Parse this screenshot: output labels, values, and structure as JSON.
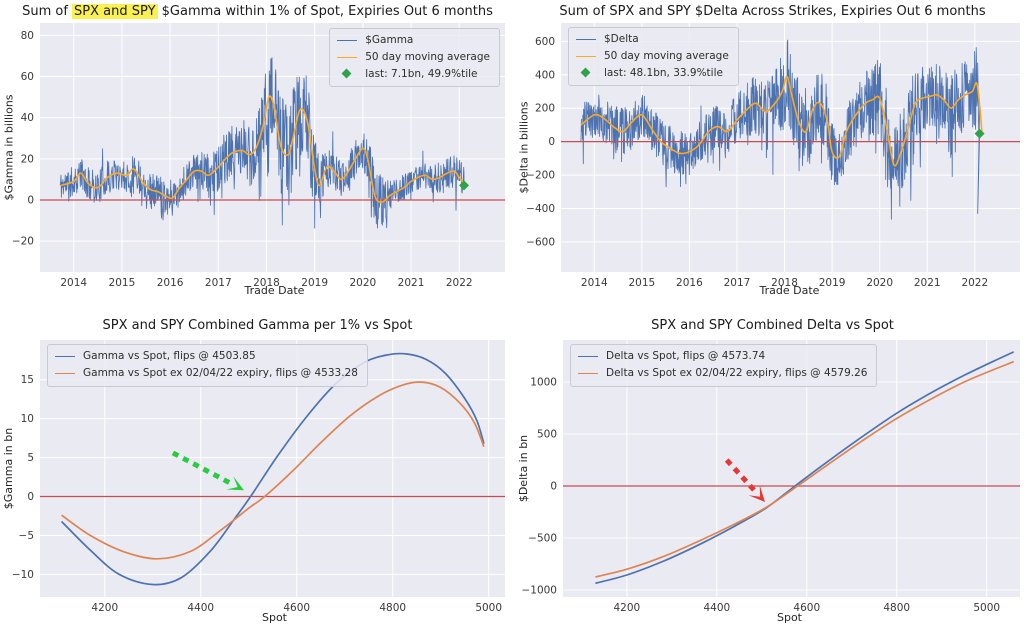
{
  "colors": {
    "blue": "#4c72b0",
    "orange_ma": "#ffa71f",
    "orange_curve": "#dd8452",
    "red_line": "#c44e52",
    "green_marker": "#31a24c",
    "green_arrow": "#28cd3c",
    "red_arrow": "#e63732",
    "axes_bg": "#eaeaf2",
    "grid": "#ffffff",
    "highlight": "#f9f054",
    "text": "#262626"
  },
  "chart_data": [
    {
      "id": "spx-spy-gamma-timeseries",
      "type": "line",
      "title_parts": [
        {
          "t": "Sum of "
        },
        {
          "t": "SPX and SPY",
          "hl": true
        },
        {
          "t": " $Gamma within 1% of Spot, Expiries Out 6 months"
        }
      ],
      "xlabel": "Trade Date",
      "ylabel": "$Gamma in billions",
      "xlim": [
        2013.3,
        2022.95
      ],
      "ylim": [
        -35,
        86
      ],
      "xticks": [
        2014,
        2015,
        2016,
        2017,
        2018,
        2019,
        2020,
        2021,
        2022
      ],
      "yticks": [
        -20,
        0,
        20,
        40,
        60,
        80
      ],
      "grid": true,
      "zero_line": true,
      "legend": {
        "position": "top-right",
        "items": [
          {
            "label": "$Gamma",
            "swatch": "line",
            "color": "#4c72b0"
          },
          {
            "label": "50 day moving average",
            "swatch": "line",
            "color": "#ffa71f"
          },
          {
            "label": "last: 7.1bn, 49.9%tile",
            "swatch": "diamond",
            "color": "#31a24c"
          }
        ]
      },
      "noisy_series": {
        "name": "$Gamma",
        "color": "#4c72b0",
        "x_start": 2013.72,
        "n_points": 1050,
        "seed": 11,
        "clamp": [
          -26,
          78
        ],
        "ma": {
          "name": "50 day moving average",
          "color": "#ffa71f",
          "x": [
            2013.72,
            2014.0,
            2014.15,
            2014.3,
            2014.5,
            2014.7,
            2014.9,
            2015.1,
            2015.25,
            2015.45,
            2015.6,
            2015.75,
            2015.9,
            2016.05,
            2016.2,
            2016.35,
            2016.5,
            2016.65,
            2016.8,
            2017.0,
            2017.15,
            2017.3,
            2017.5,
            2017.65,
            2017.8,
            2017.95,
            2018.05,
            2018.15,
            2018.3,
            2018.45,
            2018.55,
            2018.7,
            2018.85,
            2019.0,
            2019.1,
            2019.25,
            2019.4,
            2019.55,
            2019.7,
            2019.85,
            2020.0,
            2020.1,
            2020.25,
            2020.4,
            2020.55,
            2020.7,
            2020.85,
            2021.0,
            2021.15,
            2021.3,
            2021.45,
            2021.6,
            2021.75,
            2021.9,
            2022.0,
            2022.1
          ],
          "y": [
            7,
            9,
            13,
            8,
            6,
            11,
            13,
            12,
            15,
            8,
            5,
            4,
            2,
            1,
            6,
            10,
            14,
            14,
            12,
            16,
            20,
            23,
            24,
            22,
            26,
            38,
            50,
            46,
            26,
            22,
            30,
            44,
            38,
            15,
            7,
            16,
            14,
            10,
            14,
            20,
            25,
            20,
            2,
            -1,
            2,
            4,
            6,
            9,
            11,
            12,
            10,
            11,
            13,
            14,
            11,
            8
          ]
        },
        "noise_amp": {
          "x": [
            2013.72,
            2014.5,
            2015.5,
            2016.0,
            2016.5,
            2017.0,
            2017.7,
            2018.0,
            2018.5,
            2018.9,
            2019.2,
            2019.6,
            2020.0,
            2020.3,
            2020.6,
            2021.0,
            2021.5,
            2022.0,
            2022.1
          ],
          "y": [
            7,
            8,
            8,
            9,
            8,
            12,
            16,
            22,
            26,
            22,
            10,
            8,
            10,
            15,
            7,
            6,
            7,
            9,
            8
          ]
        },
        "last": {
          "x": 2022.1,
          "y": 7.1,
          "label": "last: 7.1bn, 49.9%tile",
          "color": "#31a24c"
        }
      }
    },
    {
      "id": "spx-spy-delta-timeseries",
      "type": "line",
      "title_parts": [
        {
          "t": "Sum of SPX and SPY $Delta Across Strikes, Expiries Out 6 months"
        }
      ],
      "xlabel": "Trade Date",
      "ylabel": "$Delta in billions",
      "xlim": [
        2013.3,
        2022.95
      ],
      "ylim": [
        -780,
        710
      ],
      "xticks": [
        2014,
        2015,
        2016,
        2017,
        2018,
        2019,
        2020,
        2021,
        2022
      ],
      "yticks": [
        -600,
        -400,
        -200,
        0,
        200,
        400,
        600
      ],
      "grid": true,
      "zero_line": true,
      "legend": {
        "position": "top-left",
        "items": [
          {
            "label": "$Delta",
            "swatch": "line",
            "color": "#4c72b0"
          },
          {
            "label": "50 day moving average",
            "swatch": "line",
            "color": "#ffa71f"
          },
          {
            "label": "last: 48.1bn, 33.9%tile",
            "swatch": "diamond",
            "color": "#31a24c"
          }
        ]
      },
      "noisy_series": {
        "name": "$Delta",
        "color": "#4c72b0",
        "x_start": 2013.72,
        "n_points": 1050,
        "seed": 23,
        "clamp": [
          -690,
          660
        ],
        "end_dip": [
          2022.06,
          -430
        ],
        "ma": {
          "name": "50 day moving average",
          "color": "#ffa71f",
          "x": [
            2013.72,
            2014.0,
            2014.2,
            2014.4,
            2014.6,
            2014.8,
            2015.0,
            2015.2,
            2015.4,
            2015.6,
            2015.8,
            2016.0,
            2016.2,
            2016.4,
            2016.6,
            2016.8,
            2017.0,
            2017.2,
            2017.4,
            2017.6,
            2017.8,
            2017.95,
            2018.05,
            2018.15,
            2018.3,
            2018.45,
            2018.6,
            2018.75,
            2018.9,
            2019.0,
            2019.15,
            2019.3,
            2019.5,
            2019.7,
            2019.85,
            2020.0,
            2020.15,
            2020.3,
            2020.45,
            2020.6,
            2020.75,
            2020.9,
            2021.05,
            2021.2,
            2021.35,
            2021.5,
            2021.65,
            2021.8,
            2021.95,
            2022.05,
            2022.15
          ],
          "y": [
            100,
            160,
            140,
            90,
            60,
            120,
            160,
            80,
            0,
            -40,
            -70,
            -60,
            -20,
            60,
            90,
            60,
            130,
            190,
            230,
            180,
            230,
            300,
            390,
            280,
            120,
            60,
            200,
            230,
            120,
            -60,
            -90,
            60,
            160,
            230,
            250,
            260,
            80,
            -140,
            -60,
            80,
            230,
            260,
            270,
            280,
            250,
            200,
            250,
            280,
            300,
            340,
            60
          ]
        },
        "noise_amp": {
          "x": [
            2013.72,
            2014.5,
            2015.0,
            2015.8,
            2016.3,
            2017.0,
            2017.8,
            2018.1,
            2018.5,
            2019.0,
            2019.5,
            2020.0,
            2020.4,
            2021.0,
            2021.5,
            2022.0,
            2022.15
          ],
          "y": [
            120,
            150,
            140,
            130,
            120,
            160,
            200,
            260,
            260,
            200,
            160,
            240,
            260,
            180,
            200,
            230,
            260
          ]
        },
        "last": {
          "x": 2022.1,
          "y": 48.1,
          "label": "last: 48.1bn, 33.9%tile",
          "color": "#31a24c"
        }
      }
    },
    {
      "id": "gamma-vs-spot",
      "type": "curve",
      "title_parts": [
        {
          "t": "SPX and SPY Combined Gamma per 1% vs Spot"
        }
      ],
      "xlabel": "Spot",
      "ylabel": "$Gamma in bn",
      "xlim": [
        4065,
        5034
      ],
      "ylim": [
        -12.9,
        20.1
      ],
      "xticks": [
        4200,
        4400,
        4600,
        4800,
        5000
      ],
      "yticks": [
        -10,
        -5,
        0,
        5,
        10,
        15
      ],
      "grid": true,
      "zero_line": true,
      "legend": {
        "position": "top-left",
        "items": [
          {
            "label": "Gamma vs Spot, flips @ 4503.85",
            "swatch": "line",
            "color": "#4c72b0"
          },
          {
            "label": "Gamma vs Spot ex 02/04/22 expiry, flips @ 4533.28",
            "swatch": "line",
            "color": "#dd8452"
          }
        ]
      },
      "curves": [
        {
          "name": "Gamma vs Spot, flips @ 4503.85",
          "color": "#4c72b0",
          "flip": 4503.85,
          "points": [
            [
              4110,
              -3.2
            ],
            [
              4170,
              -6.9
            ],
            [
              4230,
              -10.0
            ],
            [
              4300,
              -11.3
            ],
            [
              4360,
              -10.4
            ],
            [
              4420,
              -7.0
            ],
            [
              4470,
              -2.9
            ],
            [
              4503.85,
              0
            ],
            [
              4560,
              5.2
            ],
            [
              4620,
              10.2
            ],
            [
              4680,
              14.4
            ],
            [
              4740,
              17.2
            ],
            [
              4790,
              18.2
            ],
            [
              4830,
              18.3
            ],
            [
              4870,
              17.6
            ],
            [
              4910,
              15.8
            ],
            [
              4950,
              12.6
            ],
            [
              4975,
              9.8
            ],
            [
              4990,
              6.8
            ]
          ]
        },
        {
          "name": "Gamma vs Spot ex 02/04/22 expiry, flips @ 4533.28",
          "color": "#dd8452",
          "flip": 4533.28,
          "points": [
            [
              4110,
              -2.4
            ],
            [
              4170,
              -5.0
            ],
            [
              4240,
              -7.1
            ],
            [
              4310,
              -8.0
            ],
            [
              4380,
              -7.0
            ],
            [
              4440,
              -4.4
            ],
            [
              4500,
              -1.5
            ],
            [
              4533.28,
              0
            ],
            [
              4590,
              3.2
            ],
            [
              4650,
              6.9
            ],
            [
              4710,
              10.3
            ],
            [
              4770,
              12.9
            ],
            [
              4820,
              14.3
            ],
            [
              4860,
              14.7
            ],
            [
              4900,
              14.0
            ],
            [
              4940,
              12.0
            ],
            [
              4970,
              9.5
            ],
            [
              4990,
              6.4
            ]
          ]
        }
      ],
      "arrow": {
        "color": "#28cd3c",
        "from": [
          4342,
          5.6
        ],
        "to": [
          4490,
          0.8
        ]
      }
    },
    {
      "id": "delta-vs-spot",
      "type": "curve",
      "title_parts": [
        {
          "t": "SPX and SPY Combined Delta vs Spot"
        }
      ],
      "xlabel": "Spot",
      "ylabel": "$Delta in bn",
      "xlim": [
        4058,
        5074
      ],
      "ylim": [
        -1067,
        1404
      ],
      "xticks": [
        4200,
        4400,
        4600,
        4800,
        5000
      ],
      "yticks": [
        -1000,
        -500,
        0,
        500,
        1000
      ],
      "grid": true,
      "zero_line": true,
      "legend": {
        "position": "top-left",
        "items": [
          {
            "label": "Delta vs Spot, flips @ 4573.74",
            "swatch": "line",
            "color": "#4c72b0"
          },
          {
            "label": "Delta vs Spot ex 02/04/22 expiry, flips @ 4579.26",
            "swatch": "line",
            "color": "#dd8452"
          }
        ]
      },
      "curves": [
        {
          "name": "Delta vs Spot, flips @ 4573.74",
          "color": "#4c72b0",
          "flip": 4573.74,
          "points": [
            [
              4130,
              -935
            ],
            [
              4200,
              -855
            ],
            [
              4280,
              -725
            ],
            [
              4360,
              -565
            ],
            [
              4440,
              -385
            ],
            [
              4510,
              -210
            ],
            [
              4573.74,
              0
            ],
            [
              4640,
              215
            ],
            [
              4720,
              465
            ],
            [
              4800,
              700
            ],
            [
              4880,
              905
            ],
            [
              4950,
              1065
            ],
            [
              5010,
              1190
            ],
            [
              5060,
              1290
            ]
          ]
        },
        {
          "name": "Delta vs Spot ex 02/04/22 expiry, flips @ 4579.26",
          "color": "#dd8452",
          "flip": 4579.26,
          "points": [
            [
              4130,
              -875
            ],
            [
              4200,
              -800
            ],
            [
              4280,
              -680
            ],
            [
              4360,
              -530
            ],
            [
              4440,
              -365
            ],
            [
              4510,
              -205
            ],
            [
              4579.26,
              0
            ],
            [
              4640,
              185
            ],
            [
              4720,
              425
            ],
            [
              4800,
              650
            ],
            [
              4880,
              845
            ],
            [
              4950,
              1000
            ],
            [
              5010,
              1110
            ],
            [
              5060,
              1195
            ]
          ]
        }
      ],
      "arrow": {
        "color": "#e63732",
        "from": [
          4422,
          250
        ],
        "to": [
          4507,
          -154
        ]
      }
    }
  ]
}
